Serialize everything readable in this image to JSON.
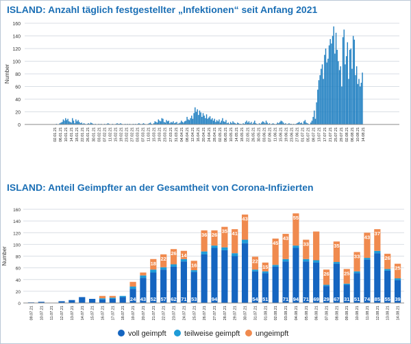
{
  "chart_data": [
    {
      "type": "bar",
      "title": "ISLAND: Anzahl täglich festgestellter „Infektionen“ seit Anfang 2021",
      "ylabel": "Number",
      "ylim": [
        0,
        160
      ],
      "yticks": [
        0,
        20,
        40,
        60,
        80,
        100,
        120,
        140,
        160
      ],
      "grid": true,
      "color": "#1f7fc1",
      "xtick_labels": [
        "02.01.21",
        "06.01.21",
        "10.01.21",
        "14.01.21",
        "18.01.21",
        "22.01.21",
        "26.01.21",
        "30.01.21",
        "03.02.21",
        "07.02.21",
        "11.02.21",
        "15.02.21",
        "19.02.21",
        "23.02.21",
        "27.02.21",
        "03.03.21",
        "07.03.21",
        "11.03.21",
        "15.03.21",
        "19.03.21",
        "23.03.21",
        "27.03.21",
        "31.03.21",
        "04.04.21",
        "08.04.21",
        "12.04.21",
        "16.04.21",
        "20.04.21",
        "24.04.21",
        "28.04.21",
        "02.05.21",
        "06.05.21",
        "10.05.21",
        "14.05.21",
        "18.05.21",
        "22.05.21",
        "26.05.21",
        "30.05.21",
        "03.06.21",
        "07.06.21",
        "11.06.21",
        "15.06.21",
        "19.06.21",
        "23.06.21",
        "27.06.21",
        "01.07.21",
        "05.07.21",
        "09.07.21",
        "13.07.21",
        "17.07.21",
        "21.07.21",
        "25.07.21",
        "29.07.21",
        "02.08.21",
        "06.08.21",
        "10.08.21",
        "14.08.21"
      ],
      "values": [
        0,
        1,
        0,
        0,
        2,
        3,
        4,
        8,
        6,
        10,
        7,
        9,
        5,
        4,
        3,
        10,
        6,
        2,
        8,
        5,
        7,
        4,
        2,
        3,
        1,
        2,
        1,
        0,
        1,
        2,
        1,
        3,
        2,
        1,
        0,
        1,
        0,
        0,
        1,
        0,
        1,
        0,
        0,
        1,
        0,
        1,
        2,
        1,
        0,
        0,
        1,
        0,
        0,
        1,
        2,
        1,
        1,
        2,
        1,
        0,
        0,
        1,
        0,
        1,
        0,
        1,
        0,
        0,
        1,
        0,
        1,
        0,
        1,
        2,
        1,
        0,
        1,
        2,
        1,
        0,
        0,
        1,
        2,
        3,
        1,
        0,
        2,
        5,
        4,
        3,
        8,
        6,
        5,
        10,
        9,
        4,
        3,
        7,
        5,
        6,
        2,
        4,
        3,
        5,
        2,
        3,
        4,
        1,
        2,
        3,
        6,
        4,
        3,
        5,
        6,
        12,
        8,
        7,
        10,
        14,
        9,
        18,
        27,
        20,
        24,
        15,
        22,
        19,
        12,
        18,
        14,
        10,
        16,
        9,
        11,
        13,
        8,
        10,
        6,
        9,
        4,
        7,
        5,
        8,
        3,
        6,
        10,
        5,
        4,
        7,
        2,
        3,
        1,
        4,
        2,
        5,
        3,
        2,
        1,
        3,
        2,
        1,
        1,
        0,
        2,
        1,
        4,
        6,
        3,
        5,
        2,
        4,
        1,
        3,
        6,
        2,
        1,
        0,
        2,
        1,
        3,
        5,
        4,
        2,
        6,
        3,
        1,
        2,
        0,
        1,
        2,
        1,
        0,
        1,
        3,
        2,
        4,
        6,
        5,
        3,
        1,
        2,
        0,
        1,
        2,
        1,
        1,
        0,
        1,
        0,
        1,
        2,
        3,
        4,
        2,
        3,
        1,
        5,
        7,
        3,
        2,
        1,
        0,
        3,
        6,
        12,
        22,
        9,
        35,
        55,
        70,
        78,
        88,
        95,
        72,
        110,
        120,
        98,
        104,
        125,
        135,
        128,
        140,
        155,
        112,
        145,
        118,
        100,
        86,
        92,
        60,
        138,
        150,
        95,
        108,
        130,
        72,
        118,
        120,
        88,
        140,
        134,
        78,
        92,
        64,
        72,
        60,
        66,
        82
      ]
    },
    {
      "type": "bar",
      "stacked": true,
      "title": "ISLAND: Anteil Geimpfter an  der Gesamtheit von Corona-Infizierten",
      "ylabel": "Number",
      "ylim": [
        0,
        160
      ],
      "yticks": [
        0,
        20,
        40,
        60,
        80,
        100,
        120,
        140,
        160
      ],
      "grid": true,
      "legend_position": "bottom",
      "categories": [
        "09.07.21",
        "10.07.21",
        "11.07.21",
        "12.07.21",
        "13.07.21",
        "14.07.21",
        "15.07.21",
        "16.07.21",
        "17.07.21",
        "18.07.21",
        "19.07.21",
        "20.07.21",
        "21.07.21",
        "22.07.21",
        "23.07.21",
        "24.07.21",
        "25.07.21",
        "26.07.21",
        "27.07.21",
        "28.07.21",
        "29.07.21",
        "30.07.21",
        "31.07.21",
        "01.08.21",
        "02.08.21",
        "03.08.21",
        "04.08.21",
        "05.08.21",
        "06.08.21",
        "07.08.21",
        "08.08.21",
        "09.08.21",
        "10.08.21",
        "11.08.21",
        "12.08.21",
        "13.08.21",
        "14.08.21"
      ],
      "series": [
        {
          "name": "voll geimpft",
          "color": "#1565c0",
          "values": [
            1,
            2,
            0,
            3,
            5,
            10,
            7,
            6,
            7,
            10,
            24,
            43,
            52,
            57,
            62,
            71,
            53,
            83,
            94,
            90,
            80,
            102,
            54,
            51,
            62,
            71,
            94,
            71,
            69,
            29,
            67,
            31,
            51,
            74,
            85,
            55,
            39
          ],
          "labels": [
            "",
            "",
            "",
            "",
            "",
            "",
            "",
            "",
            "",
            "",
            "24",
            "43",
            "52",
            "57",
            "62",
            "71",
            "53",
            "",
            "94",
            "",
            "",
            "",
            "54",
            "51",
            "",
            "71",
            "94",
            "71",
            "69",
            "29",
            "67",
            "31",
            "51",
            "74",
            "85",
            "55",
            "39"
          ]
        },
        {
          "name": "teilweise geimpft",
          "color": "#1e9bd7",
          "values": [
            0,
            0,
            0,
            0,
            0,
            0,
            0,
            2,
            2,
            2,
            4,
            4,
            5,
            4,
            4,
            4,
            3,
            5,
            4,
            5,
            5,
            6,
            3,
            3,
            3,
            4,
            4,
            4,
            4,
            2,
            3,
            2,
            3,
            3,
            4,
            3,
            3
          ]
        },
        {
          "name": "ungeimpft",
          "color": "#f08a4e",
          "values": [
            0,
            0,
            0,
            0,
            0,
            0,
            0,
            4,
            3,
            0,
            8,
            5,
            18,
            22,
            26,
            14,
            16,
            36,
            26,
            35,
            41,
            43,
            22,
            15,
            45,
            43,
            55,
            33,
            49,
            26,
            35,
            25,
            33,
            43,
            37,
            26,
            25
          ],
          "labels": [
            "",
            "",
            "",
            "",
            "",
            "",
            "",
            "",
            "",
            "",
            "",
            "",
            "18",
            "22",
            "26",
            "14",
            "16",
            "36",
            "26",
            "35",
            "41",
            "43",
            "22",
            "15",
            "45",
            "43",
            "55",
            "33",
            "",
            "26",
            "35",
            "25",
            "33",
            "43",
            "37",
            "26",
            "25"
          ]
        }
      ]
    }
  ],
  "legend": [
    {
      "label": "voll geimpft",
      "color": "#1565c0"
    },
    {
      "label": "teilweise geimpft",
      "color": "#1e9bd7"
    },
    {
      "label": "ungeimpft",
      "color": "#f08a4e"
    }
  ]
}
